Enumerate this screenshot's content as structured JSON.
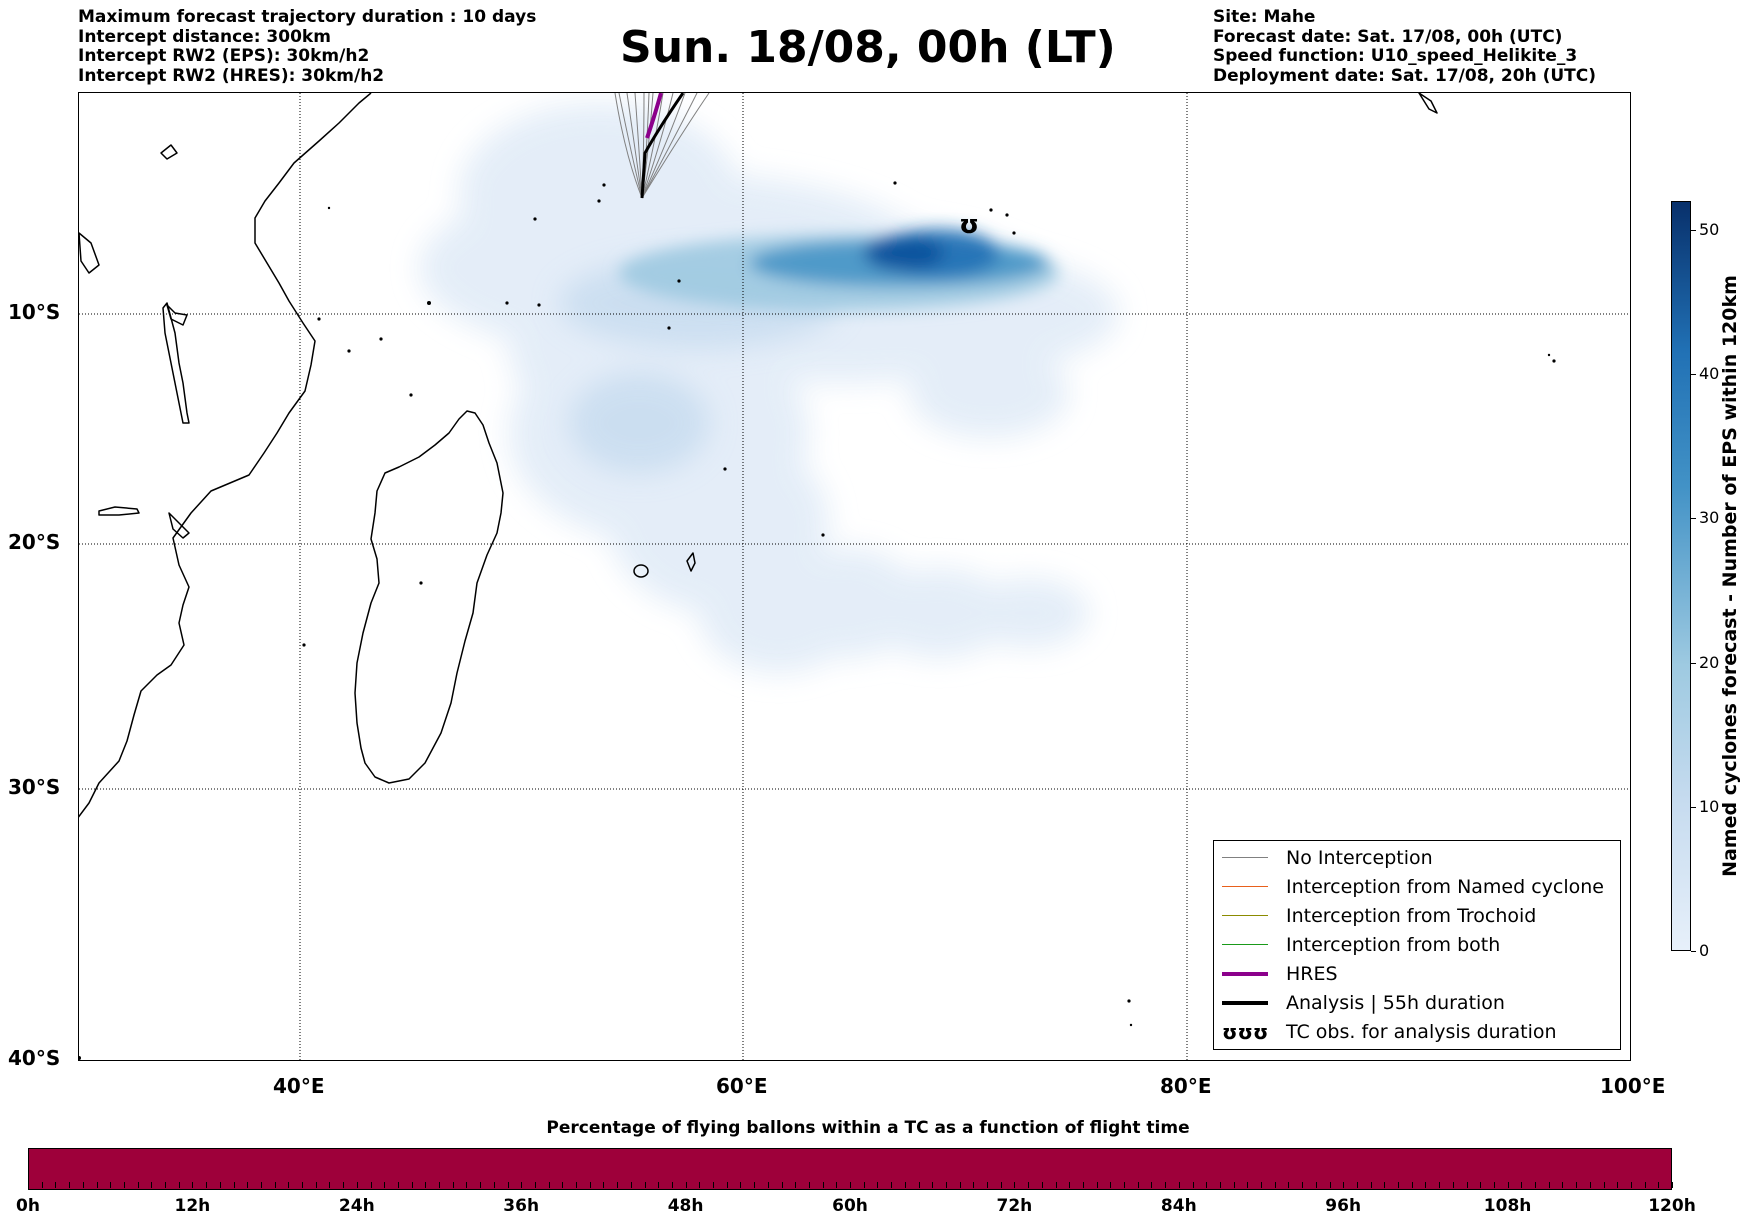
{
  "info_left": [
    "Maximum forecast trajectory duration : 10 days",
    "Intercept distance: 300km",
    "Intercept RW2 (EPS):  30km/h2",
    "Intercept RW2 (HRES): 30km/h2"
  ],
  "title": "Sun. 18/08, 00h (LT)",
  "info_right": [
    "Site: Mahe",
    "Forecast date: Sat. 17/08, 00h (UTC)",
    "Speed function: U10_speed_Helikite_3",
    "Deployment date: Sat. 17/08, 20h (UTC)"
  ],
  "map": {
    "lon_range": [
      30,
      100
    ],
    "lat_range": [
      0,
      -40
    ],
    "lat_labels": [
      "10°S",
      "20°S",
      "30°S",
      "40°S"
    ],
    "lon_labels": [
      "40°E",
      "60°E",
      "80°E",
      "100°E"
    ],
    "site": {
      "name": "Mahe",
      "lon": 55.5,
      "lat": -4.6
    },
    "tc_observation": {
      "lon": 70.2,
      "lat": -5.8
    }
  },
  "legend": {
    "items": [
      {
        "label": "No Interception",
        "color": "#808080"
      },
      {
        "label": "Interception from Named cyclone",
        "color": "#e8601c"
      },
      {
        "label": "Interception from Trochoid",
        "color": "#8b8b00"
      },
      {
        "label": "Interception from both",
        "color": "#1a9a1a"
      },
      {
        "label": "HRES",
        "color": "#8b008b"
      },
      {
        "label": "Analysis | 55h duration",
        "color": "#000000"
      },
      {
        "label": "TC obs. for analysis duration",
        "color": "#000000",
        "symbol": "ʊʊʊ"
      }
    ]
  },
  "colorbar_vertical": {
    "label": "Named cyclones forecast - Number of EPS within 120km",
    "ticks": [
      "0",
      "10",
      "20",
      "30",
      "40",
      "50"
    ],
    "range": [
      0,
      52
    ]
  },
  "colorbar_horizontal": {
    "title": "Percentage of flying ballons within a TC as a function of flight time",
    "ticks": [
      "0h",
      "12h",
      "24h",
      "36h",
      "48h",
      "60h",
      "72h",
      "84h",
      "96h",
      "108h",
      "120h"
    ],
    "fill_color": "#9e003a"
  }
}
